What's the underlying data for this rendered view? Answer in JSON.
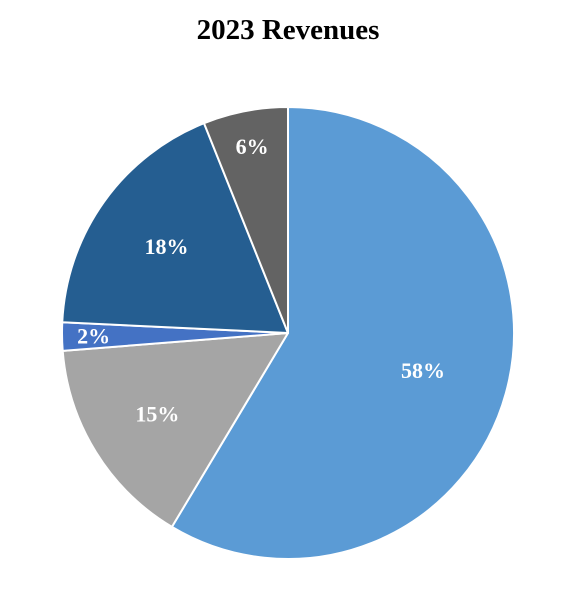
{
  "chart_data": {
    "type": "pie",
    "title": "2023 Revenues",
    "start_angle_deg": 0,
    "direction": "clockwise",
    "slices": [
      {
        "label": "58%",
        "value": 58,
        "color": "#5b9bd5"
      },
      {
        "label": "15%",
        "value": 15,
        "color": "#a5a5a5"
      },
      {
        "label": "2%",
        "value": 2,
        "color": "#4472c4"
      },
      {
        "label": "18%",
        "value": 18,
        "color": "#255e91"
      },
      {
        "label": "6%",
        "value": 6,
        "color": "#636363"
      }
    ]
  }
}
